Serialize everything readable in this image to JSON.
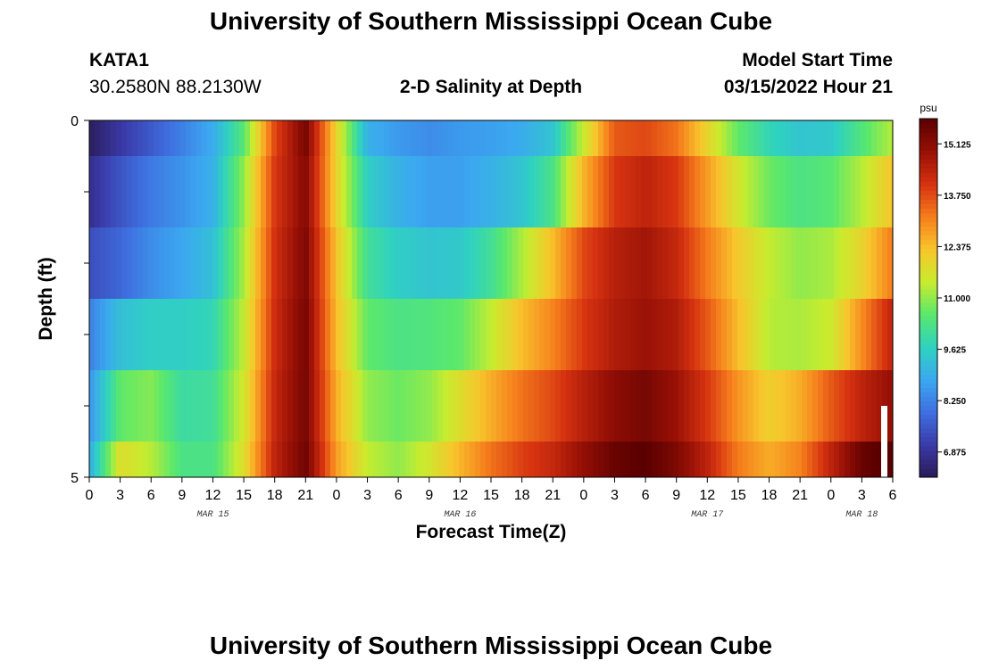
{
  "header": {
    "title": "University of Southern Mississippi Ocean Cube",
    "station": "KATA1",
    "coords": "30.2580N  88.2130W",
    "subtitle": "2-D Salinity at Depth",
    "model_label": "Model Start Time",
    "model_time": "03/15/2022 Hour 21"
  },
  "footer_title": "University of Southern Mississippi Ocean Cube",
  "chart_data": {
    "type": "heatmap",
    "title": "2-D Salinity at Depth",
    "xlabel": "Forecast Time(Z)",
    "ylabel": "Depth (ft)",
    "ylim": [
      0,
      5
    ],
    "y_ticks": [
      "0",
      "5"
    ],
    "x_tick_labels": [
      "0",
      "3",
      "6",
      "9",
      "12",
      "15",
      "18",
      "21",
      "0",
      "3",
      "6",
      "9",
      "12",
      "15",
      "18",
      "21",
      "0",
      "3",
      "6",
      "9",
      "12",
      "15",
      "18",
      "21",
      "0",
      "3",
      "6"
    ],
    "date_labels": [
      {
        "text": "MAR 15",
        "hour": 12
      },
      {
        "text": "MAR 16",
        "hour": 36
      },
      {
        "text": "MAR 17",
        "hour": 60
      },
      {
        "text": "MAR 18",
        "hour": 75
      }
    ],
    "x_hours": [
      0,
      3,
      6,
      9,
      12,
      15,
      18,
      21,
      24,
      27,
      30,
      33,
      36,
      39,
      42,
      45,
      48,
      51,
      54,
      57,
      60,
      63,
      66,
      69,
      72,
      75,
      78
    ],
    "depth_layers": [
      "0-0.5 ft",
      "0.5-1.5 ft",
      "1.5-2.5 ft",
      "2.5-3.5 ft",
      "3.5-4.5 ft",
      "4.5-5 ft"
    ],
    "salinity_rows": [
      [
        6.3,
        7.0,
        7.6,
        8.2,
        8.9,
        10.5,
        13.8,
        15.4,
        12.0,
        9.0,
        8.6,
        8.4,
        8.6,
        8.7,
        8.9,
        9.4,
        11.5,
        13.6,
        13.8,
        13.3,
        12.0,
        10.6,
        9.8,
        9.4,
        9.5,
        10.4,
        11.3
      ],
      [
        6.8,
        7.5,
        8.1,
        8.5,
        9.0,
        11.0,
        14.0,
        15.2,
        12.0,
        9.6,
        9.0,
        8.7,
        8.7,
        9.0,
        9.4,
        10.3,
        12.5,
        14.0,
        14.4,
        14.0,
        12.8,
        11.6,
        10.7,
        10.3,
        10.5,
        11.3,
        12.3
      ],
      [
        7.4,
        7.8,
        8.4,
        8.8,
        9.3,
        11.2,
        14.1,
        15.3,
        12.3,
        10.1,
        9.6,
        9.4,
        9.5,
        10.1,
        11.2,
        12.4,
        13.8,
        14.5,
        14.8,
        14.3,
        13.2,
        12.2,
        11.4,
        11.0,
        11.2,
        12.0,
        13.2
      ],
      [
        8.2,
        9.3,
        9.6,
        9.6,
        9.8,
        11.4,
        14.2,
        15.4,
        12.4,
        10.6,
        10.3,
        10.4,
        10.6,
        11.4,
        12.4,
        13.1,
        14.0,
        14.6,
        14.9,
        14.6,
        13.6,
        12.4,
        11.3,
        11.2,
        11.5,
        13.0,
        14.4
      ],
      [
        8.5,
        10.6,
        10.9,
        10.0,
        10.1,
        11.6,
        14.3,
        15.4,
        12.6,
        11.0,
        10.7,
        11.0,
        11.8,
        12.6,
        13.3,
        13.8,
        14.5,
        15.1,
        15.4,
        14.9,
        14.0,
        12.9,
        12.1,
        12.6,
        13.6,
        14.4,
        15.0
      ],
      [
        8.9,
        11.8,
        11.3,
        10.3,
        10.3,
        11.8,
        14.4,
        15.5,
        12.8,
        11.4,
        11.0,
        11.6,
        12.5,
        13.3,
        13.9,
        14.3,
        15.0,
        15.6,
        15.8,
        15.3,
        14.4,
        13.2,
        12.6,
        13.1,
        14.4,
        15.6,
        16.0
      ]
    ],
    "colorbar": {
      "unit": "psu",
      "range": [
        6.2,
        15.8
      ],
      "tick_labels": [
        "15.125",
        "13.750",
        "12.375",
        "11.000",
        "9.625",
        "8.250",
        "6.875"
      ],
      "tick_values": [
        15.125,
        13.75,
        12.375,
        11.0,
        9.625,
        8.25,
        6.875
      ],
      "colors": [
        "#2a1a55",
        "#3a3aa8",
        "#3f6fe0",
        "#3ba8f0",
        "#2fd2c0",
        "#5ae86c",
        "#c8ec2e",
        "#f8c52c",
        "#f57d1c",
        "#d53210",
        "#981006",
        "#5a0000"
      ]
    }
  }
}
